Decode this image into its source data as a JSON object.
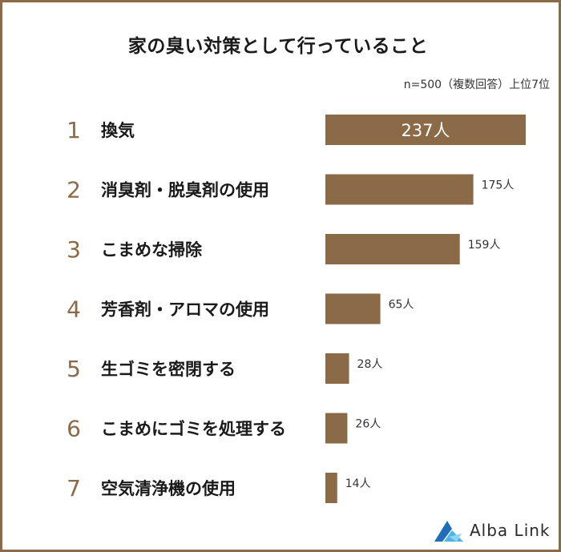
{
  "chart_data": {
    "type": "bar",
    "orientation": "horizontal",
    "title": "家の臭い対策として行っていること",
    "subtitle": "n=500（複数回答）上位7位",
    "ranks": [
      "1",
      "2",
      "3",
      "4",
      "5",
      "6",
      "7"
    ],
    "categories": [
      "換気",
      "消臭剤・脱臭剤の使用",
      "こまめな掃除",
      "芳香剤・アロマの使用",
      "生ゴミを密閉する",
      "こまめにゴミを処理する",
      "空気清浄機の使用"
    ],
    "values": [
      237,
      175,
      159,
      65,
      28,
      26,
      14
    ],
    "value_labels": [
      "237人",
      "175人",
      "159人",
      "65人",
      "28人",
      "26人",
      "14人"
    ],
    "xlim": [
      0,
      237
    ],
    "grid": false,
    "legend": "none"
  },
  "brand": {
    "name": "Alba Link"
  },
  "colors": {
    "bar": "#8b6a47",
    "rank": "#8b6a47",
    "border": "#8b6a47",
    "text": "#1a1a1a"
  }
}
